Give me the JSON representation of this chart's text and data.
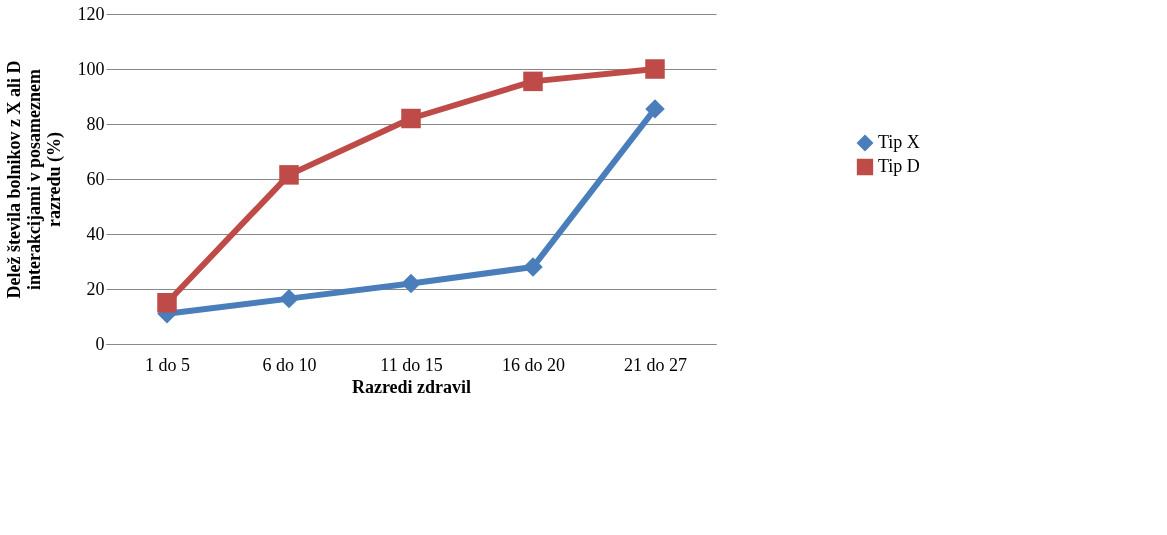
{
  "chart_data": {
    "type": "line",
    "xlabel": "Razredi zdravil",
    "ylabel": "Delež števila bolnikov z X ali D interakcijami v posameznem razredu (%)",
    "categories": [
      "1 do 5",
      "6 do 10",
      "11 do 15",
      "16 do 20",
      "21 do 27"
    ],
    "series": [
      {
        "name": "Tip X",
        "color": "#4a7ebb",
        "marker": "diamond",
        "values": [
          11,
          16.5,
          22,
          28,
          85.5
        ]
      },
      {
        "name": "Tip D",
        "color": "#be4b48",
        "marker": "square",
        "values": [
          15,
          61.5,
          82,
          95.5,
          100
        ]
      }
    ],
    "ylim": [
      0,
      120
    ],
    "yticks": [
      0,
      20,
      40,
      60,
      80,
      100,
      120
    ],
    "grid": "y",
    "legend": "right",
    "line_style": "solid"
  }
}
